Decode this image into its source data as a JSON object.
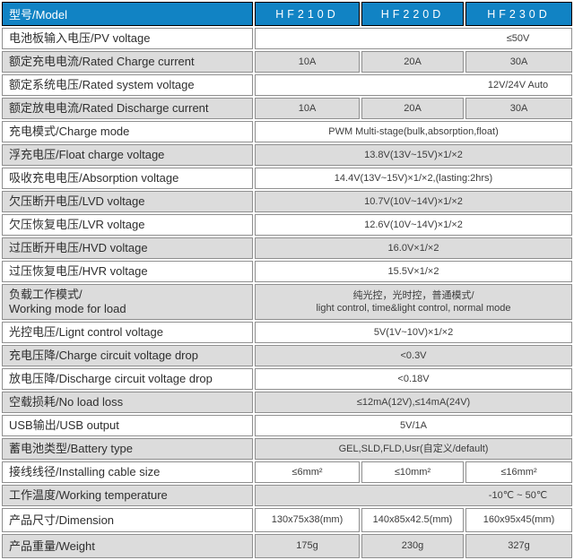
{
  "colors": {
    "header_bg": "#1183C4",
    "header_border": "#000000",
    "row_gray": "#DCDCDC",
    "cell_border": "#8F8F8F",
    "label_text": "#2E2E2E",
    "value_text": "#3C3C3C"
  },
  "header": {
    "label": "型号/Model",
    "models": [
      "HF210D",
      "HF220D",
      "HF230D"
    ]
  },
  "rows": [
    {
      "label": "电池板输入电压/PV voltage",
      "type": "merged-right",
      "value": "≤50V"
    },
    {
      "label": "额定充电电流/Rated Charge current",
      "type": "triple",
      "values": [
        "10A",
        "20A",
        "30A"
      ]
    },
    {
      "label": "额定系统电压/Rated system voltage",
      "type": "merged-right",
      "value": "12V/24V Auto"
    },
    {
      "label": "额定放电电流/Rated Discharge current",
      "type": "triple",
      "values": [
        "10A",
        "20A",
        "30A"
      ]
    },
    {
      "label": "充电模式/Charge mode",
      "type": "merged",
      "value": "PWM Multi-stage(bulk,absorption,float)"
    },
    {
      "label": "浮充电压/Float charge voltage",
      "type": "merged",
      "value": "13.8V(13V~15V)×1/×2"
    },
    {
      "label": "吸收充电电压/Absorption voltage",
      "type": "merged",
      "value": "14.4V(13V~15V)×1/×2,(lasting:2hrs)"
    },
    {
      "label": "欠压断开电压/LVD voltage",
      "type": "merged",
      "value": "10.7V(10V~14V)×1/×2"
    },
    {
      "label": "欠压恢复电压/LVR voltage",
      "type": "merged",
      "value": "12.6V(10V~14V)×1/×2"
    },
    {
      "label": "过压断开电压/HVD voltage",
      "type": "merged",
      "value": "16.0V×1/×2"
    },
    {
      "label": "过压恢复电压/HVR voltage",
      "type": "merged",
      "value": "15.5V×1/×2"
    },
    {
      "label": "负载工作模式/\nWorking mode for load",
      "type": "merged",
      "size": "tall",
      "value": "纯光控，光时控，普通模式/\nlight control, time&light control, normal mode"
    },
    {
      "label": "光控电压/Lignt control voltage",
      "type": "merged",
      "value": "5V(1V~10V)×1/×2"
    },
    {
      "label": "充电压降/Charge circuit voltage drop",
      "type": "merged",
      "value": "<0.3V"
    },
    {
      "label": "放电压降/Discharge circuit voltage drop",
      "type": "merged",
      "value": "<0.18V"
    },
    {
      "label": "空载损耗/No load loss",
      "type": "merged",
      "value": "≤12mA(12V),≤14mA(24V)"
    },
    {
      "label": "USB输出/USB output",
      "type": "merged",
      "value": "5V/1A"
    },
    {
      "label": "蓄电池类型/Battery type",
      "type": "merged",
      "value": "GEL,SLD,FLD,Usr(自定义/default)"
    },
    {
      "label": "接线线径/Installing cable size",
      "type": "triple",
      "values": [
        "≤6mm²",
        "≤10mm²",
        "≤16mm²"
      ]
    },
    {
      "label": "工作温度/Working temperature",
      "type": "merged-right",
      "value": "-10℃ ~ 50℃"
    },
    {
      "label": "产品尺寸/Dimension",
      "type": "triple",
      "size": "big",
      "values": [
        "130x75x38(mm)",
        "140x85x42.5(mm)",
        "160x95x45(mm)"
      ]
    },
    {
      "label": "产品重量/Weight",
      "type": "triple",
      "size": "big",
      "values": [
        "175g",
        "230g",
        "327g"
      ]
    }
  ]
}
